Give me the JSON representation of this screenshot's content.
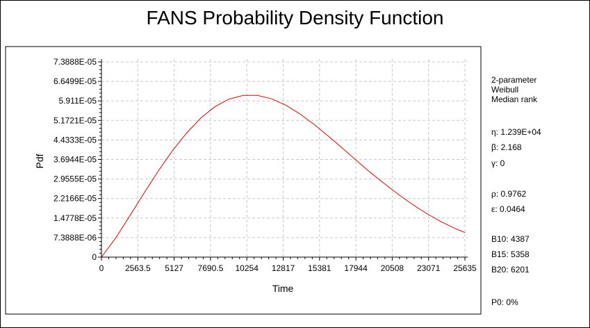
{
  "chart_data": {
    "type": "line",
    "title": "FANS Probability Density Function",
    "xlabel": "Time",
    "ylabel": "Pdf",
    "xlim": [
      0,
      25635
    ],
    "ylim": [
      0,
      7.3888e-05
    ],
    "grid": true,
    "x_ticks": [
      "0",
      "2563.5",
      "5127",
      "7690.5",
      "10254",
      "12817",
      "15381",
      "17944",
      "20508",
      "23071",
      "25635"
    ],
    "y_ticks": [
      "0",
      "7.3888E-06",
      "1.4778E-05",
      "2.2166E-05",
      "2.9555E-05",
      "3.6944E-05",
      "4.4333E-05",
      "5.1721E-05",
      "5.911E-05",
      "6.6499E-05",
      "7.3888E-05"
    ],
    "series": [
      {
        "color": "#e00000",
        "distribution": {
          "eta": 12390,
          "beta": 2.168,
          "gamma": 0
        },
        "x": [
          0,
          1000,
          2000,
          3000,
          4000,
          5000,
          6000,
          7000,
          8000,
          9000,
          10000,
          11000,
          12000,
          13000,
          14000,
          15000,
          16000,
          17000,
          18000,
          19000,
          20000,
          21000,
          22000,
          23000,
          24000,
          25000,
          25635
        ],
        "y": [
          0,
          7.2e-06,
          1.56e-05,
          2.42e-05,
          3.25e-05,
          4.02e-05,
          4.69e-05,
          5.26e-05,
          5.69e-05,
          5.98e-05,
          6.12e-05,
          6.12e-05,
          5.99e-05,
          5.75e-05,
          5.42e-05,
          5.02e-05,
          4.58e-05,
          4.12e-05,
          3.65e-05,
          3.19e-05,
          2.76e-05,
          2.35e-05,
          1.97e-05,
          1.63e-05,
          1.33e-05,
          1.07e-05,
          9.3e-06
        ]
      }
    ]
  },
  "info": {
    "model": [
      "2-parameter",
      "Weibull",
      "Median rank"
    ],
    "eta": "η: 1.239E+04",
    "beta": "β: 2.168",
    "gamma": "γ: 0",
    "rho": "ρ: 0.9762",
    "epsilon": "ε: 0.0464",
    "b10": "B10: 4387",
    "b15": "B15: 5358",
    "b20": "B20: 6201",
    "p0": "P0: 0%"
  }
}
